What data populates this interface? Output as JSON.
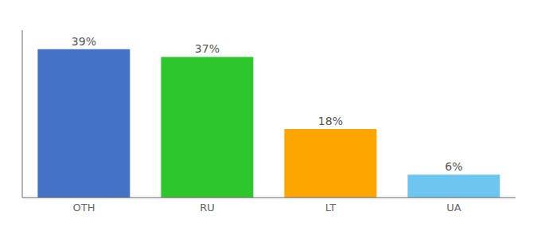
{
  "chart_data": {
    "type": "bar",
    "categories": [
      "OTH",
      "RU",
      "LT",
      "UA"
    ],
    "values": [
      39,
      37,
      18,
      6
    ],
    "colors": [
      "#4472C4",
      "#2DC72D",
      "#FFA500",
      "#6EC6F0"
    ],
    "value_labels": [
      "39%",
      "37%",
      "18%",
      "6%"
    ],
    "data_labels": true,
    "ylim": [
      0,
      44
    ],
    "tick_labels": "x"
  }
}
